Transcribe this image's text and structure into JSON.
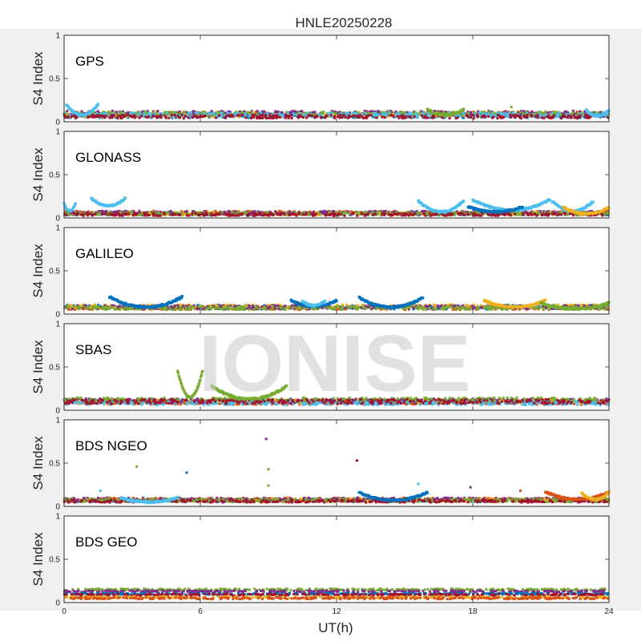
{
  "figure": {
    "title": "HNLE20250228",
    "watermark": "IONISE",
    "xlabel": "UT(h)",
    "background": "#f0f0f0"
  },
  "chart_data": {
    "type": "scatter",
    "title": "HNLE20250228",
    "xlabel": "UT(h)",
    "ylabel": "S4 Index",
    "xlim": [
      0,
      24
    ],
    "ylim": [
      0,
      1
    ],
    "xticks": [
      "0",
      "6",
      "12",
      "18",
      "24"
    ],
    "yticks": [
      "0",
      "0.5",
      "1"
    ],
    "grid": false,
    "series_colors": [
      "#0072BD",
      "#D95319",
      "#EDB120",
      "#7E2F8E",
      "#77AC30",
      "#4DBEEE",
      "#A2142F"
    ],
    "panels": [
      {
        "label": "GPS",
        "baseline": [
          {
            "color": "#0072BD",
            "level": 0.07,
            "spread": 0.05
          },
          {
            "color": "#D95319",
            "level": 0.09,
            "spread": 0.05
          },
          {
            "color": "#EDB120",
            "level": 0.08,
            "spread": 0.05
          },
          {
            "color": "#7E2F8E",
            "level": 0.1,
            "spread": 0.05
          },
          {
            "color": "#77AC30",
            "level": 0.09,
            "spread": 0.05
          },
          {
            "color": "#4DBEEE",
            "level": 0.08,
            "spread": 0.05
          },
          {
            "color": "#A2142F",
            "level": 0.06,
            "spread": 0.04
          }
        ],
        "arcs": [
          {
            "color": "#4DBEEE",
            "x0": 0.1,
            "x1": 1.5,
            "ymin": 0.08,
            "ymax": 0.2
          },
          {
            "color": "#77AC30",
            "x0": 16.0,
            "x1": 17.6,
            "ymin": 0.08,
            "ymax": 0.14
          },
          {
            "color": "#4DBEEE",
            "x0": 23.0,
            "x1": 24.0,
            "ymin": 0.07,
            "ymax": 0.13
          }
        ],
        "spikes": [
          {
            "x": 19.7,
            "y": 0.17,
            "color": "#77AC30"
          }
        ]
      },
      {
        "label": "GLONASS",
        "baseline": [
          {
            "color": "#0072BD",
            "level": 0.05,
            "spread": 0.04
          },
          {
            "color": "#D95319",
            "level": 0.06,
            "spread": 0.04
          },
          {
            "color": "#EDB120",
            "level": 0.05,
            "spread": 0.04
          },
          {
            "color": "#7E2F8E",
            "level": 0.06,
            "spread": 0.04
          },
          {
            "color": "#77AC30",
            "level": 0.05,
            "spread": 0.03
          },
          {
            "color": "#A2142F",
            "level": 0.04,
            "spread": 0.03
          }
        ],
        "arcs": [
          {
            "color": "#4DBEEE",
            "x0": 0.0,
            "x1": 0.5,
            "ymin": 0.08,
            "ymax": 0.16
          },
          {
            "color": "#4DBEEE",
            "x0": 1.2,
            "x1": 2.7,
            "ymin": 0.14,
            "ymax": 0.23
          },
          {
            "color": "#4DBEEE",
            "x0": 15.6,
            "x1": 17.6,
            "ymin": 0.07,
            "ymax": 0.2
          },
          {
            "color": "#4DBEEE",
            "x0": 18.0,
            "x1": 21.4,
            "ymin": 0.09,
            "ymax": 0.21
          },
          {
            "color": "#4DBEEE",
            "x0": 21.5,
            "x1": 23.3,
            "ymin": 0.08,
            "ymax": 0.19
          },
          {
            "color": "#0072BD",
            "x0": 17.8,
            "x1": 20.2,
            "ymin": 0.07,
            "ymax": 0.13
          },
          {
            "color": "#EDB120",
            "x0": 22.0,
            "x1": 24.0,
            "ymin": 0.05,
            "ymax": 0.12
          }
        ],
        "spikes": []
      },
      {
        "label": "GALILEO",
        "baseline": [
          {
            "color": "#0072BD",
            "level": 0.08,
            "spread": 0.05
          },
          {
            "color": "#D95319",
            "level": 0.07,
            "spread": 0.04
          },
          {
            "color": "#EDB120",
            "level": 0.09,
            "spread": 0.04
          },
          {
            "color": "#7E2F8E",
            "level": 0.08,
            "spread": 0.04
          },
          {
            "color": "#77AC30",
            "level": 0.07,
            "spread": 0.04
          }
        ],
        "arcs": [
          {
            "color": "#0072BD",
            "x0": 2.0,
            "x1": 5.2,
            "ymin": 0.08,
            "ymax": 0.2
          },
          {
            "color": "#0072BD",
            "x0": 10.0,
            "x1": 12.0,
            "ymin": 0.09,
            "ymax": 0.16
          },
          {
            "color": "#0072BD",
            "x0": 13.0,
            "x1": 15.8,
            "ymin": 0.08,
            "ymax": 0.19
          },
          {
            "color": "#EDB120",
            "x0": 18.5,
            "x1": 21.2,
            "ymin": 0.08,
            "ymax": 0.16
          },
          {
            "color": "#77AC30",
            "x0": 21.0,
            "x1": 24.0,
            "ymin": 0.06,
            "ymax": 0.13
          },
          {
            "color": "#4DBEEE",
            "x0": 10.5,
            "x1": 11.5,
            "ymin": 0.1,
            "ymax": 0.15
          }
        ],
        "spikes": []
      },
      {
        "label": "SBAS",
        "baseline": [
          {
            "color": "#0072BD",
            "level": 0.1,
            "spread": 0.05
          },
          {
            "color": "#D95319",
            "level": 0.09,
            "spread": 0.05
          },
          {
            "color": "#EDB120",
            "level": 0.1,
            "spread": 0.05
          },
          {
            "color": "#7E2F8E",
            "level": 0.11,
            "spread": 0.05
          },
          {
            "color": "#77AC30",
            "level": 0.12,
            "spread": 0.05
          },
          {
            "color": "#4DBEEE",
            "level": 0.08,
            "spread": 0.04
          },
          {
            "color": "#A2142F",
            "level": 0.1,
            "spread": 0.05
          }
        ],
        "arcs": [
          {
            "color": "#77AC30",
            "x0": 5.0,
            "x1": 6.1,
            "ymin": 0.15,
            "ymax": 0.46
          },
          {
            "color": "#77AC30",
            "x0": 6.5,
            "x1": 9.8,
            "ymin": 0.13,
            "ymax": 0.28
          }
        ],
        "spikes": []
      },
      {
        "label": "BDS NGEO",
        "baseline": [
          {
            "color": "#0072BD",
            "level": 0.07,
            "spread": 0.04
          },
          {
            "color": "#D95319",
            "level": 0.08,
            "spread": 0.04
          },
          {
            "color": "#EDB120",
            "level": 0.07,
            "spread": 0.04
          },
          {
            "color": "#7E2F8E",
            "level": 0.08,
            "spread": 0.04
          },
          {
            "color": "#77AC30",
            "level": 0.07,
            "spread": 0.04
          },
          {
            "color": "#A2142F",
            "level": 0.06,
            "spread": 0.03
          }
        ],
        "arcs": [
          {
            "color": "#4DBEEE",
            "x0": 2.5,
            "x1": 5.0,
            "ymin": 0.05,
            "ymax": 0.1
          },
          {
            "color": "#0072BD",
            "x0": 13.0,
            "x1": 16.0,
            "ymin": 0.07,
            "ymax": 0.16
          },
          {
            "color": "#D95319",
            "x0": 21.2,
            "x1": 24.0,
            "ymin": 0.08,
            "ymax": 0.17
          },
          {
            "color": "#EDB120",
            "x0": 22.8,
            "x1": 24.0,
            "ymin": 0.08,
            "ymax": 0.16
          }
        ],
        "spikes": [
          {
            "x": 1.6,
            "y": 0.18,
            "color": "#4DBEEE"
          },
          {
            "x": 3.2,
            "y": 0.46,
            "color": "#77AC30"
          },
          {
            "x": 5.4,
            "y": 0.39,
            "color": "#0072BD"
          },
          {
            "x": 8.9,
            "y": 0.78,
            "color": "#7E2F8E"
          },
          {
            "x": 9.0,
            "y": 0.43,
            "color": "#77AC30"
          },
          {
            "x": 9.0,
            "y": 0.24,
            "color": "#77AC30"
          },
          {
            "x": 12.9,
            "y": 0.53,
            "color": "#A2142F"
          },
          {
            "x": 15.6,
            "y": 0.26,
            "color": "#4DBEEE"
          },
          {
            "x": 17.9,
            "y": 0.22,
            "color": "#7E2F8E"
          },
          {
            "x": 20.1,
            "y": 0.18,
            "color": "#D95319"
          }
        ]
      },
      {
        "label": "BDS GEO",
        "baseline": [
          {
            "color": "#77AC30",
            "level": 0.15,
            "spread": 0.02
          },
          {
            "color": "#7E2F8E",
            "level": 0.13,
            "spread": 0.02
          },
          {
            "color": "#0072BD",
            "level": 0.1,
            "spread": 0.02
          },
          {
            "color": "#A2142F",
            "level": 0.09,
            "spread": 0.02
          },
          {
            "color": "#EDB120",
            "level": 0.06,
            "spread": 0.02
          },
          {
            "color": "#D95319",
            "level": 0.05,
            "spread": 0.02
          }
        ],
        "arcs": [],
        "spikes": []
      }
    ]
  }
}
